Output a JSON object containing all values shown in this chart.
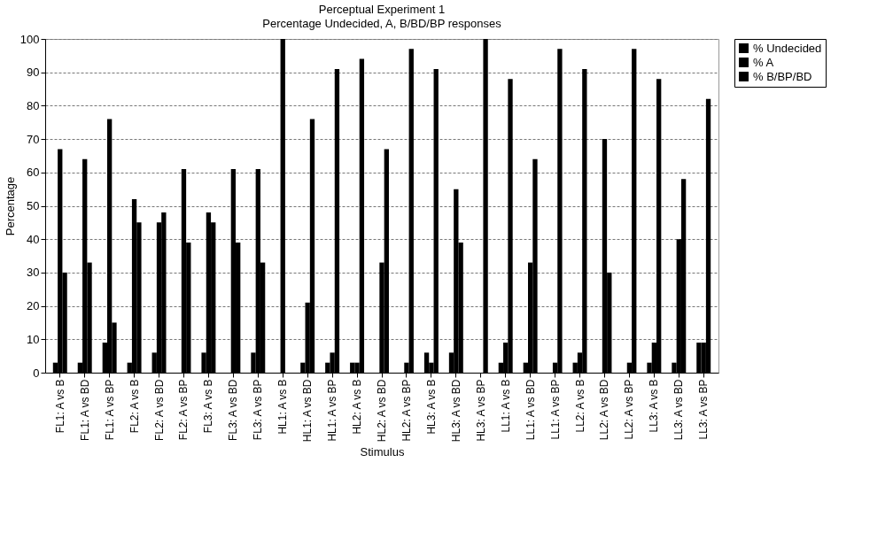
{
  "chart_data": {
    "type": "bar",
    "title": "Perceptual Experiment 1",
    "subtitle": "Percentage Undecided, A, B/BD/BP responses",
    "xlabel": "Stimulus",
    "ylabel": "Percentage",
    "categories": [
      "FL1: A vs B",
      "FL1: A vs BD",
      "FL1: A vs BP",
      "FL2: A vs B",
      "FL2: A vs BD",
      "FL2: A vs BP",
      "FL3: A vs B",
      "FL3: A vs BD",
      "FL3: A vs BP",
      "HL1: A vs B",
      "HL1: A vs BD",
      "HL1: A vs BP",
      "HL2: A vs B",
      "HL2: A vs BD",
      "HL2: A vs BP",
      "HL3: A vs B",
      "HL3: A vs BD",
      "HL3: A vs BP",
      "LL1: A vs B",
      "LL1: A vs BD",
      "LL1: A vs BP",
      "LL2: A vs B",
      "LL2: A vs BD",
      "LL2: A vs BP",
      "LL3: A vs B",
      "LL3: A vs BD",
      "LL3: A vs BP"
    ],
    "series": [
      {
        "name": "% Undecided",
        "color": "#000000",
        "values": [
          3,
          3,
          9,
          3,
          6,
          0,
          6,
          0,
          6,
          0,
          3,
          3,
          3,
          0,
          0,
          6,
          6,
          0,
          3,
          3,
          0,
          3,
          0,
          0,
          3,
          3,
          9
        ]
      },
      {
        "name": "% A",
        "color": "#000000",
        "values": [
          67,
          64,
          76,
          52,
          45,
          61,
          48,
          61,
          61,
          100,
          21,
          6,
          3,
          33,
          3,
          3,
          55,
          0,
          9,
          33,
          3,
          6,
          70,
          3,
          9,
          40,
          9
        ]
      },
      {
        "name": "% B/BP/BD",
        "color": "#000000",
        "values": [
          30,
          33,
          15,
          45,
          48,
          39,
          45,
          39,
          33,
          0,
          76,
          91,
          94,
          67,
          97,
          91,
          39,
          100,
          88,
          64,
          97,
          91,
          30,
          97,
          88,
          58,
          82
        ]
      }
    ],
    "ylim": [
      0,
      100
    ],
    "yticks": [
      0,
      10,
      20,
      30,
      40,
      50,
      60,
      70,
      80,
      90,
      100
    ],
    "grid": "y",
    "legend": "right"
  }
}
